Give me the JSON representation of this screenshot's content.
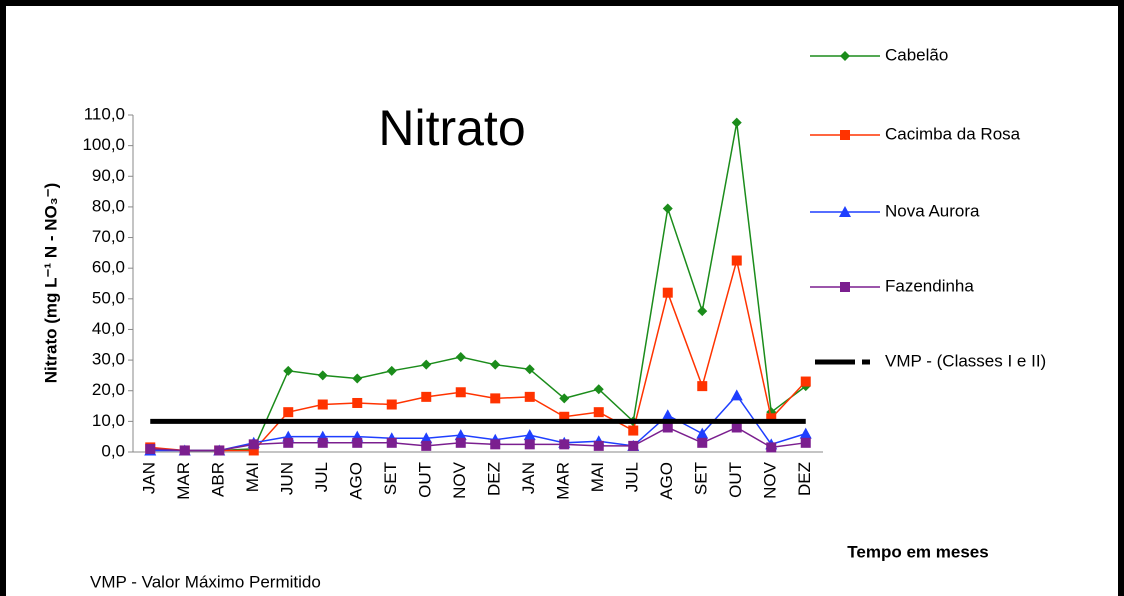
{
  "chart_data": {
    "type": "line",
    "title": "Nitrato",
    "y_label": "Nitrato (mg L⁻¹ N - NO₃⁻)",
    "x_label": "Tempo em meses",
    "note": "VMP - Valor Máximo Permitido",
    "categories": [
      "JAN",
      "MAR",
      "ABR",
      "MAI",
      "JUN",
      "JUL",
      "AGO",
      "SET",
      "OUT",
      "NOV",
      "DEZ",
      "JAN",
      "MAR",
      "MAI",
      "JUL",
      "AGO",
      "SET",
      "OUT",
      "NOV",
      "DEZ"
    ],
    "series": [
      {
        "name": "Cabelão",
        "color": "#1b8c1b",
        "marker": "diamond",
        "values": [
          1,
          0.5,
          0.5,
          1,
          26.5,
          25,
          24,
          26.5,
          28.5,
          31,
          28.5,
          27,
          17.5,
          20.5,
          10,
          79.5,
          46,
          107.5,
          13,
          21.5
        ]
      },
      {
        "name": "Cacimba da Rosa",
        "color": "#ff3300",
        "marker": "square",
        "values": [
          1.5,
          0.5,
          0.5,
          0.5,
          13,
          15.5,
          16,
          15.5,
          18,
          19.5,
          17.5,
          18,
          11.5,
          13,
          7,
          52,
          21.5,
          62.5,
          11,
          23
        ]
      },
      {
        "name": "Nova Aurora",
        "color": "#1f3fff",
        "marker": "triangle",
        "values": [
          0.5,
          0.5,
          0.5,
          3,
          5,
          5,
          5,
          4.5,
          4.5,
          5.5,
          4,
          5.5,
          3,
          3.5,
          2,
          12,
          6,
          18.5,
          2.5,
          6
        ]
      },
      {
        "name": "Fazendinha",
        "color": "#7b1f8f",
        "marker": "square",
        "values": [
          1,
          0.5,
          0.5,
          2.5,
          3,
          3,
          3,
          3,
          2,
          3,
          2.5,
          2.5,
          2.5,
          2,
          2,
          8,
          3,
          8,
          1.5,
          3
        ]
      },
      {
        "name": "VMP - (Classes I e II)",
        "color": "#000000",
        "marker": "none",
        "values": [
          10,
          10,
          10,
          10,
          10,
          10,
          10,
          10,
          10,
          10,
          10,
          10,
          10,
          10,
          10,
          10,
          10,
          10,
          10,
          10
        ]
      }
    ],
    "ylim": [
      0,
      110
    ],
    "yticks": [
      {
        "value": 0,
        "label": "0,0"
      },
      {
        "value": 10,
        "label": "10,0"
      },
      {
        "value": 20,
        "label": "20,0"
      },
      {
        "value": 30,
        "label": "30,0"
      },
      {
        "value": 40,
        "label": "40,0"
      },
      {
        "value": 50,
        "label": "50,0"
      },
      {
        "value": 60,
        "label": "60,0"
      },
      {
        "value": 70,
        "label": "70,0"
      },
      {
        "value": 80,
        "label": "80,0"
      },
      {
        "value": 90,
        "label": "90,0"
      },
      {
        "value": 100,
        "label": "100,0"
      },
      {
        "value": 110,
        "label": "110,0"
      }
    ],
    "grid": false,
    "legend": "right"
  }
}
